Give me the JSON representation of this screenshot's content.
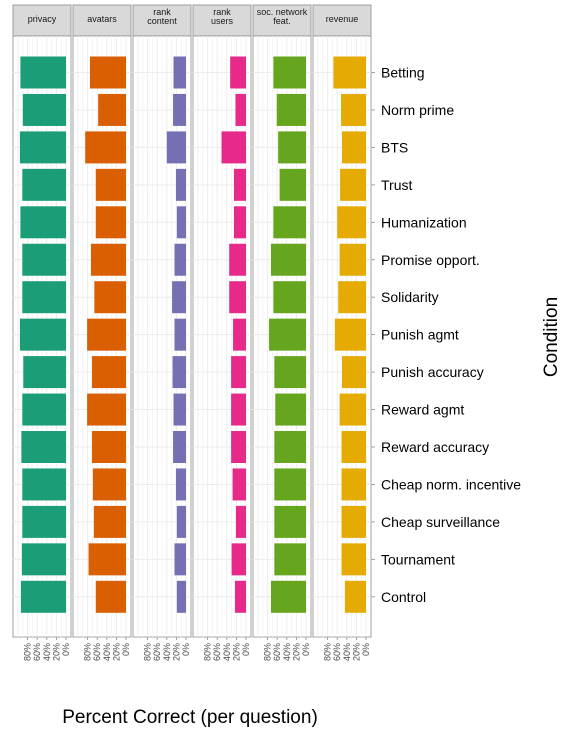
{
  "chart_data": {
    "type": "bar",
    "orientation": "horizontal",
    "facets": [
      "privacy",
      "avatars",
      "rank content",
      "rank users",
      "soc. network feat.",
      "revenue"
    ],
    "facet_label_lines": [
      [
        "privacy"
      ],
      [
        "avatars"
      ],
      [
        "rank",
        "content"
      ],
      [
        "rank",
        "users"
      ],
      [
        "soc. network",
        "feat."
      ],
      [
        "revenue"
      ]
    ],
    "facet_colors": [
      "#1b9e77",
      "#d95f02",
      "#7570b3",
      "#e7298a",
      "#66a61e",
      "#e6ab02"
    ],
    "categories": [
      "Betting",
      "Norm prime",
      "BTS",
      "Trust",
      "Humanization",
      "Promise opport.",
      "Solidarity",
      "Punish agmt",
      "Punish accuracy",
      "Reward agmt",
      "Reward accuracy",
      "Cheap norm. incentive",
      "Cheap surveillance",
      "Tournament",
      "Control"
    ],
    "series": [
      {
        "name": "privacy",
        "values": [
          95,
          90,
          96,
          91,
          95,
          91,
          91,
          96,
          89,
          91,
          93,
          91,
          91,
          92,
          94
        ]
      },
      {
        "name": "avatars",
        "values": [
          75,
          58,
          85,
          63,
          63,
          73,
          66,
          81,
          71,
          81,
          71,
          69,
          67,
          78,
          63
        ]
      },
      {
        "name": "rank content",
        "values": [
          26,
          27,
          40,
          21,
          19,
          24,
          29,
          24,
          28,
          26,
          27,
          21,
          19,
          24,
          19
        ]
      },
      {
        "name": "rank users",
        "values": [
          33,
          22,
          51,
          25,
          25,
          35,
          35,
          27,
          31,
          31,
          31,
          28,
          21,
          30,
          23
        ]
      },
      {
        "name": "soc. network feat.",
        "values": [
          68,
          61,
          58,
          55,
          68,
          73,
          68,
          77,
          66,
          64,
          66,
          66,
          66,
          66,
          73
        ]
      },
      {
        "name": "revenue",
        "values": [
          68,
          52,
          50,
          54,
          60,
          55,
          58,
          65,
          50,
          55,
          51,
          51,
          51,
          51,
          44
        ]
      }
    ],
    "x_ticks": [
      "80%",
      "60%",
      "40%",
      "20%",
      "0%"
    ],
    "x_tick_values": [
      80,
      60,
      40,
      20,
      0
    ],
    "xlim": [
      100,
      0
    ],
    "x_reversed": true,
    "xlabel": "Percent Correct (per question)",
    "ylabel": "Condition",
    "y_axis_position": "right",
    "grid": true,
    "legend": "none"
  }
}
